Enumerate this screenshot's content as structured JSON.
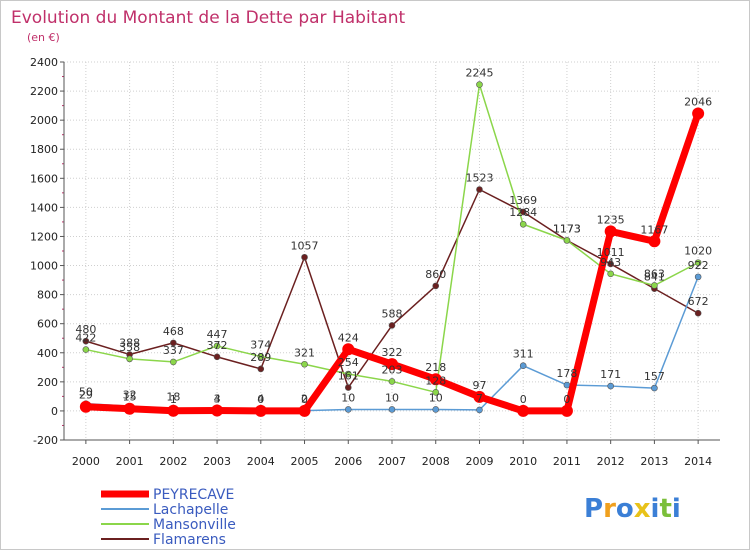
{
  "chart_data": {
    "type": "line",
    "title": "Evolution du Montant de la Dette par Habitant",
    "subtitle": "(en €)",
    "xlabel": "",
    "ylabel": "",
    "x": [
      "2000",
      "2001",
      "2002",
      "2003",
      "2004",
      "2005",
      "2006",
      "2007",
      "2008",
      "2009",
      "2010",
      "2011",
      "2012",
      "2013",
      "2014"
    ],
    "ylim": [
      -200,
      2400
    ],
    "yticks": [
      -200,
      0,
      200,
      400,
      600,
      800,
      1000,
      1200,
      1400,
      1600,
      1800,
      2000,
      2200,
      2400
    ],
    "grid": true,
    "legend_position": "bottom-left",
    "series": [
      {
        "name": "PEYRECAVE",
        "color": "#ff0000",
        "values": [
          29,
          15,
          1,
          3,
          0,
          0,
          424,
          322,
          218,
          97,
          0,
          0,
          1235,
          1167,
          2046
        ]
      },
      {
        "name": "Lachapelle",
        "color": "#5b9bd5",
        "values": [
          50,
          32,
          18,
          4,
          4,
          2,
          10,
          10,
          10,
          7,
          311,
          178,
          171,
          157,
          922
        ]
      },
      {
        "name": "Mansonville",
        "color": "#8bd64a",
        "values": [
          422,
          358,
          337,
          447,
          374,
          321,
          254,
          203,
          128,
          2245,
          1284,
          1173,
          943,
          863,
          1020
        ]
      },
      {
        "name": "Flamarens",
        "color": "#6b2020",
        "values": [
          480,
          388,
          468,
          372,
          289,
          1057,
          161,
          588,
          860,
          1523,
          1369,
          1173,
          1011,
          841,
          672
        ]
      }
    ]
  },
  "logo": {
    "letters": [
      "P",
      "r",
      "o",
      "x",
      "i",
      "t",
      "i"
    ],
    "colors": [
      "#3b7fd6",
      "#f0a01e",
      "#3b7fd6",
      "#e8c21a",
      "#3b7fd6",
      "#7bbf3a",
      "#3b7fd6"
    ]
  }
}
